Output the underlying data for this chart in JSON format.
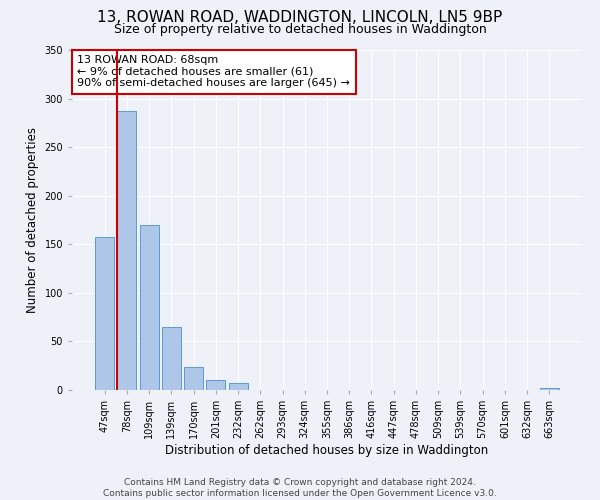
{
  "title": "13, ROWAN ROAD, WADDINGTON, LINCOLN, LN5 9BP",
  "subtitle": "Size of property relative to detached houses in Waddington",
  "xlabel": "Distribution of detached houses by size in Waddington",
  "ylabel": "Number of detached properties",
  "bin_labels": [
    "47sqm",
    "78sqm",
    "109sqm",
    "139sqm",
    "170sqm",
    "201sqm",
    "232sqm",
    "262sqm",
    "293sqm",
    "324sqm",
    "355sqm",
    "386sqm",
    "416sqm",
    "447sqm",
    "478sqm",
    "509sqm",
    "539sqm",
    "570sqm",
    "601sqm",
    "632sqm",
    "663sqm"
  ],
  "bar_heights": [
    157,
    287,
    170,
    65,
    24,
    10,
    7,
    0,
    0,
    0,
    0,
    0,
    0,
    0,
    0,
    0,
    0,
    0,
    0,
    0,
    2
  ],
  "bar_color": "#aec6e8",
  "bar_edge_color": "#5b9bd5",
  "vline_color": "#cc0000",
  "vline_x_index": 0.57,
  "annotation_text": "13 ROWAN ROAD: 68sqm\n← 9% of detached houses are smaller (61)\n90% of semi-detached houses are larger (645) →",
  "annotation_box_color": "#ffffff",
  "annotation_box_edge": "#cc0000",
  "ylim": [
    0,
    350
  ],
  "yticks": [
    0,
    50,
    100,
    150,
    200,
    250,
    300,
    350
  ],
  "footer_text": "Contains HM Land Registry data © Crown copyright and database right 2024.\nContains public sector information licensed under the Open Government Licence v3.0.",
  "bg_color": "#eef2f8",
  "grid_color": "#ffffff",
  "title_fontsize": 11,
  "subtitle_fontsize": 9,
  "axis_label_fontsize": 8.5,
  "tick_fontsize": 7,
  "footer_fontsize": 6.5,
  "annot_fontsize": 8
}
